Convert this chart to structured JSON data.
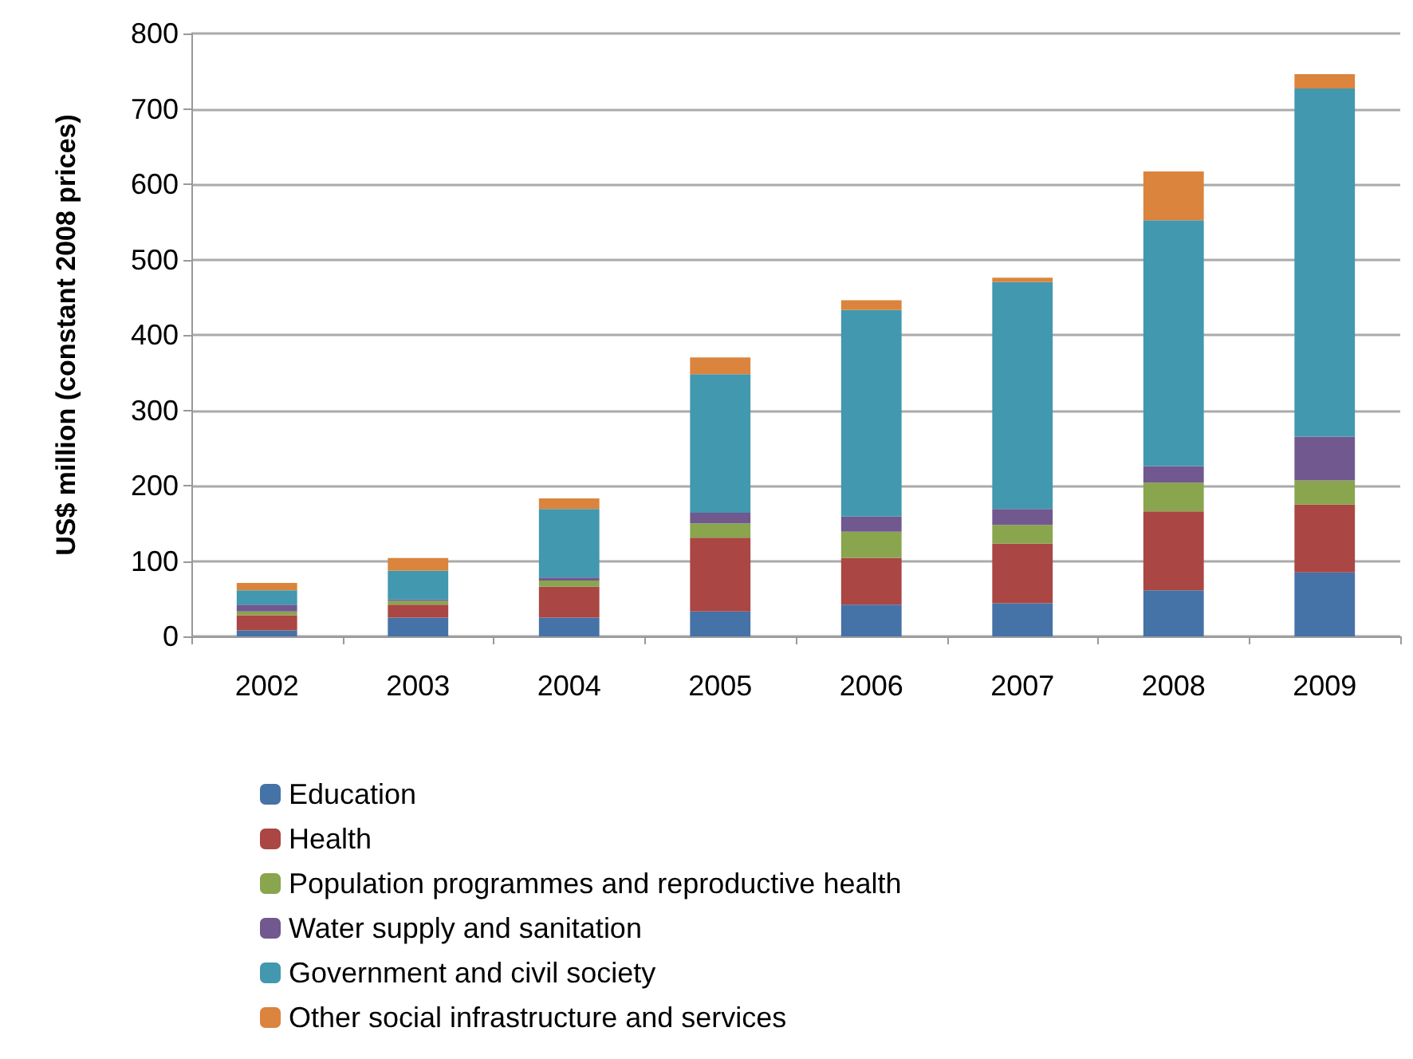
{
  "chart_data": {
    "type": "bar",
    "stacked": true,
    "ylabel": "US$ million (constant 2008 prices)",
    "categories": [
      "2002",
      "2003",
      "2004",
      "2005",
      "2006",
      "2007",
      "2008",
      "2009"
    ],
    "series": [
      {
        "name": "Education",
        "color": "#4572a7",
        "values": [
          8,
          25,
          25,
          33,
          42,
          44,
          61,
          85
        ]
      },
      {
        "name": "Health",
        "color": "#aa4643",
        "values": [
          20,
          17,
          41,
          98,
          62,
          79,
          105,
          90
        ]
      },
      {
        "name": "Population programmes and reproductive health",
        "color": "#89a54e",
        "values": [
          5,
          5,
          8,
          19,
          35,
          25,
          38,
          32
        ]
      },
      {
        "name": "Water supply and sanitation",
        "color": "#71588f",
        "values": [
          9,
          2,
          4,
          14,
          20,
          21,
          22,
          58
        ]
      },
      {
        "name": "Government and civil society",
        "color": "#4198af",
        "values": [
          19,
          38,
          91,
          184,
          274,
          301,
          326,
          462
        ]
      },
      {
        "name": "Other social infrastructure and services",
        "color": "#db843d",
        "values": [
          10,
          17,
          14,
          22,
          13,
          6,
          65,
          19
        ]
      }
    ],
    "ylim": [
      0,
      800
    ],
    "yticks": [
      0,
      100,
      200,
      300,
      400,
      500,
      600,
      700,
      800
    ],
    "grid": "y",
    "legend": "bottom"
  }
}
